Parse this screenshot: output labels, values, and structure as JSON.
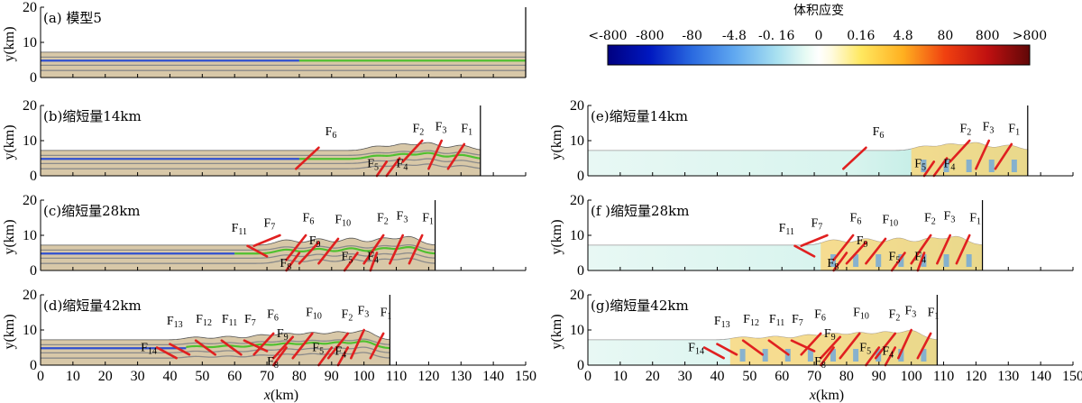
{
  "colorbar": {
    "title": "体积应变",
    "ticks": [
      "<-800",
      "-800",
      "-80",
      "-4.8",
      "-0. 16",
      "0",
      "0.16",
      "4.8",
      "80",
      "800",
      ">800"
    ]
  },
  "axis": {
    "xlabel_italic": "x",
    "xlabel_unit": "(km)",
    "ylabel": "y(km)",
    "xticks": [
      "0",
      "10",
      "20",
      "30",
      "40",
      "50",
      "60",
      "70",
      "80",
      "90",
      "100",
      "110",
      "120",
      "130",
      "140",
      "150"
    ],
    "yticks": [
      "0",
      "10",
      "20"
    ]
  },
  "panels": [
    {
      "label": "(a) 模型5",
      "type": "model",
      "shortening_km": 0,
      "faults": []
    },
    {
      "label": "(b)缩短量14km",
      "type": "model",
      "shortening_km": 14,
      "faults": [
        "F6",
        "F2",
        "F3",
        "F1",
        "F5",
        "F4"
      ]
    },
    {
      "label": "(c)缩短量28km",
      "type": "model",
      "shortening_km": 28,
      "faults": [
        "F11",
        "F7",
        "F6",
        "F10",
        "F2",
        "F3",
        "F1",
        "F9",
        "F8",
        "F5",
        "F4"
      ]
    },
    {
      "label": "(d)缩短量42km",
      "type": "model",
      "shortening_km": 42,
      "faults": [
        "F13",
        "F12",
        "F11",
        "F7",
        "F6",
        "F10",
        "F2",
        "F3",
        "F1",
        "F14",
        "F9",
        "F8",
        "F5",
        "F4"
      ]
    },
    {
      "label": "(e)缩短量14km",
      "type": "strain",
      "shortening_km": 14,
      "faults": [
        "F6",
        "F2",
        "F3",
        "F1",
        "F5",
        "F4"
      ]
    },
    {
      "label": "(f )缩短量28km",
      "type": "strain",
      "shortening_km": 28,
      "faults": [
        "F11",
        "F7",
        "F6",
        "F10",
        "F2",
        "F3",
        "F1",
        "F9",
        "F8",
        "F5",
        "F4"
      ]
    },
    {
      "label": "(g)缩短量42km",
      "type": "strain",
      "shortening_km": 42,
      "faults": [
        "F13",
        "F12",
        "F11",
        "F7",
        "F6",
        "F10",
        "F2",
        "F3",
        "F1",
        "F14",
        "F9",
        "F8",
        "F5",
        "F4"
      ]
    }
  ],
  "colors": {
    "fault": "#e02020",
    "blue_layer": "#3050d0",
    "green_layer": "#50c030",
    "sand": "#d8c8a8"
  }
}
